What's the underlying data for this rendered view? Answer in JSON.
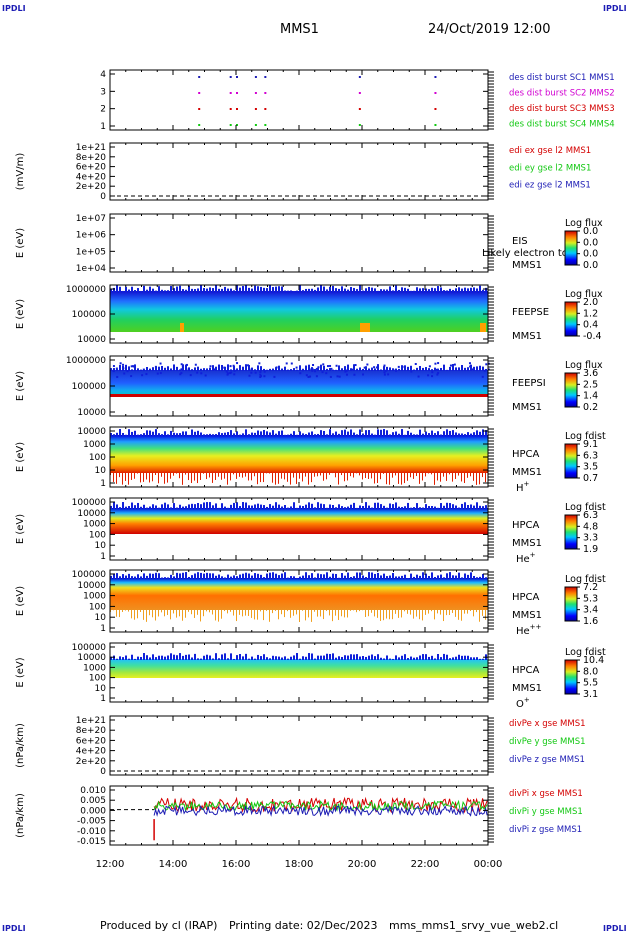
{
  "header": {
    "corner_label": "IPDLI",
    "spacecraft": "MMS1",
    "datetime": "24/Oct/2019 12:00"
  },
  "footer": {
    "produced_by": "Produced by cl (IRAP)",
    "printing_date": "Printing date: 02/Dec/2023",
    "script": "mms_mms1_srvy_vue_web2.cl"
  },
  "colors": {
    "blue": "#1c1cb4",
    "magenta": "#d100d1",
    "red": "#d40000",
    "green": "#12c812"
  },
  "chart_data": [
    {
      "id": "burst",
      "type": "scatter",
      "yticks": [
        "4",
        "3",
        "2",
        "1"
      ],
      "legend": [
        {
          "text": "des dist burst SC1 MMS1",
          "color": "#1c1cb4"
        },
        {
          "text": "des dist burst SC2 MMS2",
          "color": "#d100d1"
        },
        {
          "text": "des dist burst SC3 MMS3",
          "color": "#d40000"
        },
        {
          "text": "des dist burst SC4 MMS4",
          "color": "#12c812"
        }
      ],
      "burst_times_h": [
        14.8,
        15.8,
        16.0,
        16.6,
        16.9,
        19.9,
        22.3
      ]
    },
    {
      "id": "edi",
      "type": "line",
      "ylabel": "(mV/m)",
      "yticks": [
        "1e+21",
        "8e+20",
        "6e+20",
        "4e+20",
        "2e+20",
        "0"
      ],
      "legend": [
        {
          "text": "edi ex gse l2 MMS1",
          "color": "#d40000"
        },
        {
          "text": "edi ey gse l2 MMS1",
          "color": "#12c812"
        },
        {
          "text": "edi ez gse l2 MMS1",
          "color": "#1c1cb4"
        }
      ]
    },
    {
      "id": "eis",
      "type": "heatmap",
      "ylabel": "E (eV)",
      "yticks": [
        "1e+07",
        "1e+06",
        "1e+05",
        "1e+04"
      ],
      "instrument": "EIS",
      "spacecraft": "MMS1",
      "overlay_text": "Likely electron to",
      "colorbar_title": "Log flux",
      "colorbar_ticks": [
        "0.0",
        "0.0",
        "0.0",
        "0.0"
      ]
    },
    {
      "id": "feepse",
      "type": "heatmap",
      "ylabel": "E (eV)",
      "yticks": [
        "1000000",
        "100000",
        "10000"
      ],
      "instrument": "FEEPSE",
      "spacecraft": "MMS1",
      "colorbar_title": "Log flux",
      "colorbar_ticks": [
        "2.0",
        "1.2",
        "0.4",
        "-0.4"
      ]
    },
    {
      "id": "feepsi",
      "type": "heatmap",
      "ylabel": "E (eV)",
      "yticks": [
        "1000000",
        "100000",
        "10000"
      ],
      "instrument": "FEEPSI",
      "spacecraft": "MMS1",
      "colorbar_title": "Log flux",
      "colorbar_ticks": [
        "3.6",
        "2.5",
        "1.4",
        "0.2"
      ]
    },
    {
      "id": "hpca_h",
      "type": "heatmap",
      "ylabel": "E (eV)",
      "yticks": [
        "10000",
        "1000",
        "100",
        "10",
        "1"
      ],
      "instrument": "HPCA",
      "spacecraft": "MMS1",
      "species": "H",
      "charge": "+",
      "colorbar_title": "Log fdist",
      "colorbar_ticks": [
        "9.1",
        "6.3",
        "3.5",
        "0.7"
      ]
    },
    {
      "id": "hpca_he1",
      "type": "heatmap",
      "ylabel": "E (eV)",
      "yticks": [
        "100000",
        "10000",
        "1000",
        "100",
        "10",
        "1"
      ],
      "instrument": "HPCA",
      "spacecraft": "MMS1",
      "species": "He",
      "charge": "+",
      "colorbar_title": "Log fdist",
      "colorbar_ticks": [
        "6.3",
        "4.8",
        "3.3",
        "1.9"
      ]
    },
    {
      "id": "hpca_he2",
      "type": "heatmap",
      "ylabel": "E (eV)",
      "yticks": [
        "100000",
        "10000",
        "1000",
        "100",
        "10",
        "1"
      ],
      "instrument": "HPCA",
      "spacecraft": "MMS1",
      "species": "He",
      "charge": "++",
      "colorbar_title": "Log fdist",
      "colorbar_ticks": [
        "7.2",
        "5.3",
        "3.4",
        "1.6"
      ]
    },
    {
      "id": "hpca_o",
      "type": "heatmap",
      "ylabel": "E (eV)",
      "yticks": [
        "100000",
        "10000",
        "1000",
        "100",
        "10",
        "1"
      ],
      "instrument": "HPCA",
      "spacecraft": "MMS1",
      "species": "O",
      "charge": "+",
      "colorbar_title": "Log fdist",
      "colorbar_ticks": [
        "10.4",
        "8.0",
        "5.5",
        "3.1"
      ]
    },
    {
      "id": "divpe",
      "type": "line",
      "ylabel": "(nPa/km)",
      "yticks": [
        "1e+21",
        "8e+20",
        "6e+20",
        "4e+20",
        "2e+20",
        "0"
      ],
      "legend": [
        {
          "text": "divPe x gse MMS1",
          "color": "#d40000"
        },
        {
          "text": "divPe y gse MMS1",
          "color": "#12c812"
        },
        {
          "text": "divPe z gse MMS1",
          "color": "#1c1cb4"
        }
      ]
    },
    {
      "id": "divpi",
      "type": "line",
      "ylabel": "(nPa/km)",
      "yticks": [
        "0.010",
        "0.005",
        "0.000",
        "-0.005",
        "-0.010",
        "-0.015"
      ],
      "ylim": [
        -0.015,
        0.01
      ],
      "legend": [
        {
          "text": "divPi x gse MMS1",
          "color": "#d40000"
        },
        {
          "text": "divPi y gse MMS1",
          "color": "#12c812"
        },
        {
          "text": "divPi z gse MMS1",
          "color": "#1c1cb4"
        }
      ],
      "data_start_h": 13.4
    }
  ],
  "x_axis": {
    "ticks": [
      "12:00",
      "14:00",
      "16:00",
      "18:00",
      "20:00",
      "22:00",
      "00:00"
    ],
    "range_h": [
      12,
      24
    ]
  }
}
